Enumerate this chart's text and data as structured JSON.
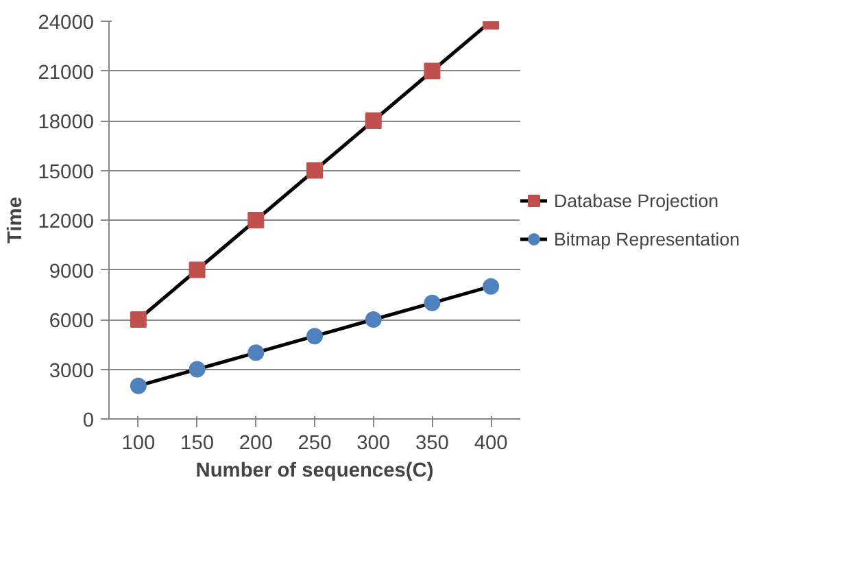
{
  "chart_data": {
    "type": "line",
    "xlabel": "Number of sequences(C)",
    "ylabel": "Time",
    "categories": [
      "100",
      "150",
      "200",
      "250",
      "300",
      "350",
      "400"
    ],
    "series": [
      {
        "name": "Database Projection",
        "color": "#c0504d",
        "marker": "square",
        "values": [
          6000,
          9000,
          12000,
          15000,
          18000,
          21000,
          24000
        ]
      },
      {
        "name": "Bitmap Representation",
        "color": "#4f81bd",
        "marker": "circle",
        "values": [
          2000,
          3000,
          4000,
          5000,
          6000,
          7000,
          8000
        ]
      }
    ],
    "ylim": [
      0,
      24000
    ],
    "yticks": [
      0,
      3000,
      6000,
      9000,
      12000,
      15000,
      18000,
      21000,
      24000
    ],
    "grid": "y",
    "legend": "right"
  }
}
